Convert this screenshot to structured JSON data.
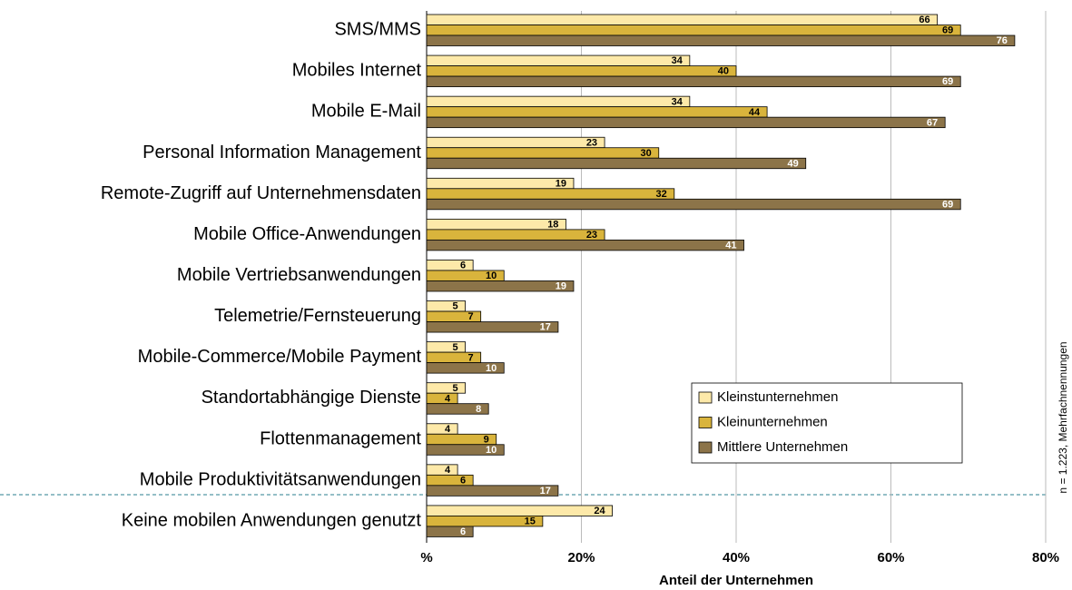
{
  "chart_data": {
    "type": "bar",
    "orientation": "horizontal",
    "categories": [
      "SMS/MMS",
      "Mobiles Internet",
      "Mobile E-Mail",
      "Personal Information Management",
      "Remote-Zugriff auf Unternehmensdaten",
      "Mobile Office-Anwendungen",
      "Mobile Vertriebsanwendungen",
      "Telemetrie/Fernsteuerung",
      "Mobile-Commerce/Mobile Payment",
      "Standortabhängige Dienste",
      "Flottenmanagement",
      "Mobile Produktivitätsanwendungen",
      "Keine mobilen Anwendungen genutzt"
    ],
    "series": [
      {
        "name": "Kleinstunternehmen",
        "color": "#fde9a9",
        "values": [
          66,
          34,
          34,
          23,
          19,
          18,
          6,
          5,
          5,
          5,
          4,
          4,
          24
        ]
      },
      {
        "name": "Kleinunternehmen",
        "color": "#d9b43c",
        "values": [
          69,
          40,
          44,
          30,
          32,
          23,
          10,
          7,
          7,
          4,
          9,
          6,
          15
        ]
      },
      {
        "name": "Mittlere Unternehmen",
        "color": "#8c7449",
        "values": [
          76,
          69,
          67,
          49,
          69,
          41,
          19,
          17,
          10,
          8,
          10,
          17,
          6
        ]
      }
    ],
    "xlim": [
      0,
      80
    ],
    "xticks": [
      {
        "value": 0,
        "label": "%"
      },
      {
        "value": 20,
        "label": "20%"
      },
      {
        "value": 40,
        "label": "40%"
      },
      {
        "value": 60,
        "label": "60%"
      },
      {
        "value": 80,
        "label": "80%"
      }
    ],
    "xlabel": "Anteil der Unternehmen",
    "note": "n = 1.223, Mehrfachnennungen",
    "grid": true,
    "legend": "lower right"
  }
}
